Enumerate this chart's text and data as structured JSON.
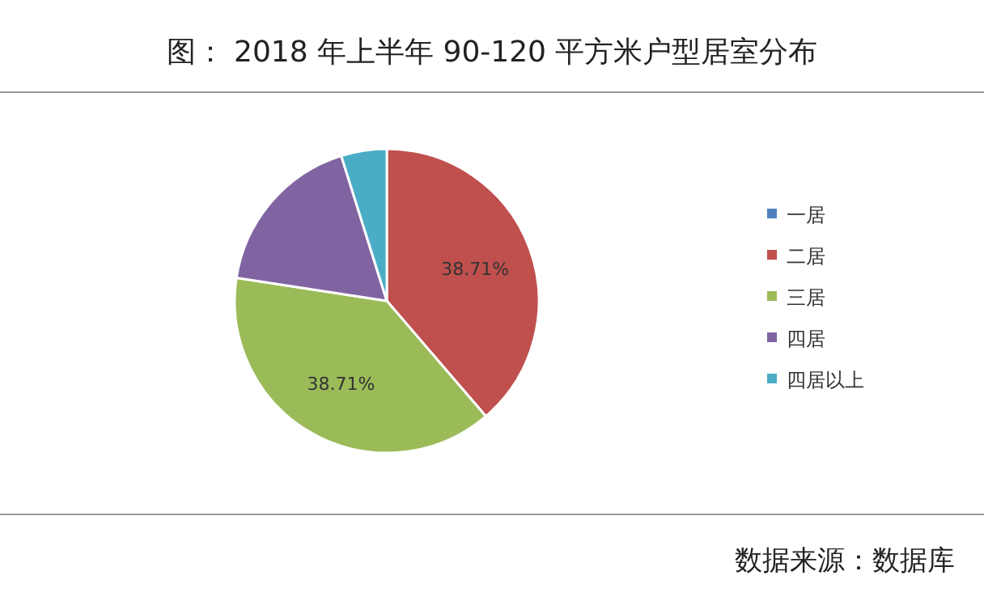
{
  "chart_data": {
    "type": "pie",
    "title": "图： 2018 年上半年 90-120 平方米户型居室分布",
    "categories": [
      "一居",
      "二居",
      "三居",
      "四居",
      "四居以上"
    ],
    "values": [
      0,
      38.71,
      38.71,
      17.74,
      4.84
    ],
    "colors": [
      "#4f81bd",
      "#c0504d",
      "#9bbb59",
      "#8064a2",
      "#4bacc6"
    ],
    "value_labels": [
      null,
      "38.71%",
      "38.71%",
      null,
      null
    ],
    "legend": "right",
    "annotations": [
      "数据来源：数据库"
    ]
  }
}
